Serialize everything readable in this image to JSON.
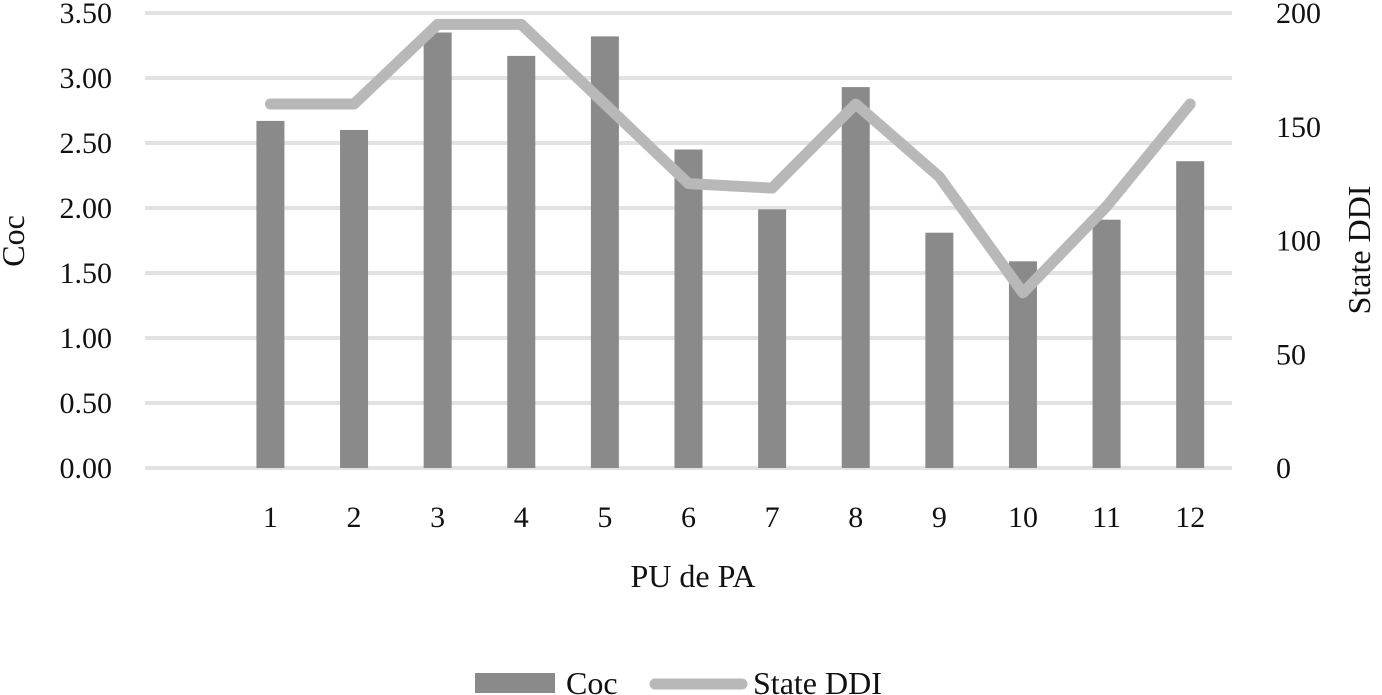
{
  "chart_data": {
    "type": "bar",
    "categories": [
      "1",
      "2",
      "3",
      "4",
      "5",
      "6",
      "7",
      "8",
      "9",
      "10",
      "11",
      "12"
    ],
    "series": [
      {
        "name": "Coc",
        "type": "bar",
        "axis": "left",
        "values": [
          2.67,
          2.6,
          3.35,
          3.17,
          3.32,
          2.45,
          1.99,
          2.93,
          1.81,
          1.59,
          1.91,
          2.36
        ]
      },
      {
        "name": "State DDI",
        "type": "line",
        "axis": "right",
        "values": [
          160,
          160,
          195,
          195,
          160,
          125,
          123,
          160,
          128,
          77,
          115,
          160
        ]
      }
    ],
    "xlabel": "PU de PA",
    "ylabel": "Coc",
    "y2label": "State DDI",
    "ylim": [
      0,
      3.5
    ],
    "y2lim": [
      0,
      200
    ],
    "yticks": [
      "0.00",
      "0.50",
      "1.00",
      "1.50",
      "2.00",
      "2.50",
      "3.00",
      "3.50"
    ],
    "y2ticks": [
      "0",
      "50",
      "100",
      "150",
      "200"
    ],
    "grid": true,
    "legend_position": "bottom",
    "colors": {
      "bar": "#8a8a8a",
      "line": "#b8b8b8",
      "grid": "#e2e2e2"
    }
  }
}
